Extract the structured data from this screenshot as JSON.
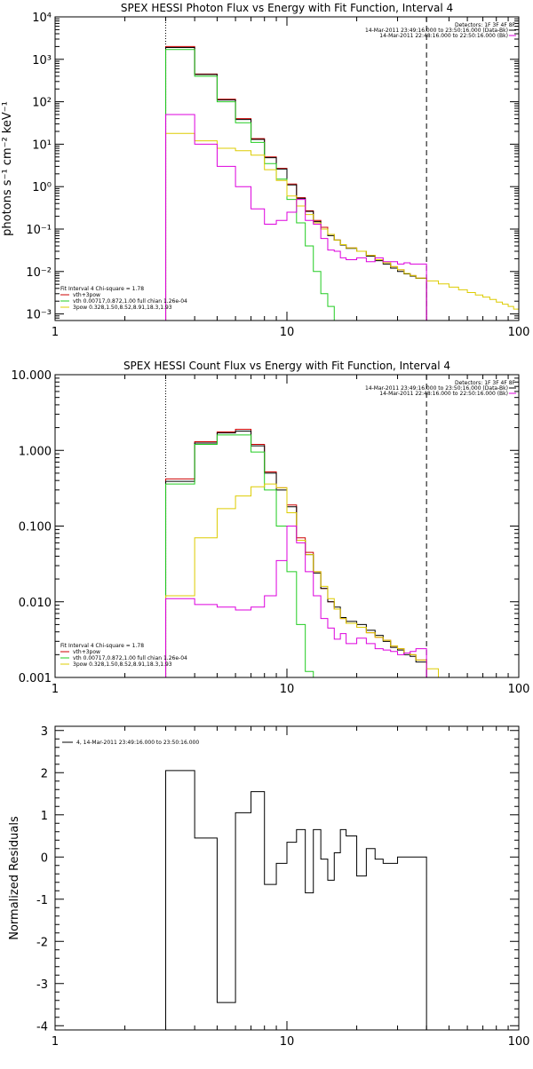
{
  "colors": {
    "sum": "#000000",
    "vth_spow": "#cc0000",
    "vth": "#22cc22",
    "spow": "#ddcc00",
    "bk": "#dd00dd"
  },
  "chart_data": [
    {
      "type": "line",
      "title": "SPEX HESSI Photon Flux vs Energy with Fit Function, Interval 4",
      "ylabel": "photons s⁻¹ cm⁻² keV⁻¹",
      "xlabel": "",
      "xscale": "log",
      "yscale": "log",
      "xlim": [
        1,
        100
      ],
      "ylim": [
        0.0007,
        10000
      ],
      "x_tick_labels": [
        "1",
        "10",
        "100"
      ],
      "y_tick_labels": [
        "10⁻³",
        "10⁻²",
        "10⁻¹",
        "10⁰",
        "10¹",
        "10²",
        "10³",
        "10⁴"
      ],
      "vlines": [
        {
          "x": 3,
          "style": "dotted"
        },
        {
          "x": 40,
          "style": "dashed"
        }
      ],
      "legend_top": [
        "Detectors: 1F 3F 4F 8F",
        "14-Mar-2011 23:49:16.000 to 23:50:16.000 (Data-Bk)",
        "14-Mar-2011 22:48:16.000 to 22:50:16.000 (Bk)"
      ],
      "legend_top_colors": [
        "",
        "#000000",
        "#dd00dd"
      ],
      "legend_bottom": [
        "Fit Interval 4   Chi-square = 1.78",
        "vth+3pow",
        "vth 0.00717,0.872,1.00  full chian 1.26e-04",
        "3pow 0.328,1.50,8.52,8.91,18.3,1.93"
      ],
      "legend_bottom_colors": [
        "",
        "#cc0000",
        "#22cc22",
        "#ddcc00"
      ],
      "edges": [
        3,
        4,
        5,
        6,
        7,
        8,
        9,
        10,
        11,
        12,
        13,
        14,
        15,
        16,
        17,
        18,
        20,
        22,
        24,
        26,
        28,
        30,
        32,
        34,
        36,
        40
      ],
      "extended_edges": [
        40,
        45,
        50,
        55,
        60,
        65,
        70,
        75,
        80,
        85,
        90,
        95,
        100
      ],
      "series": [
        {
          "name": "vth+3pow",
          "color": "#cc0000",
          "values": [
            2000,
            450,
            115,
            40,
            13.5,
            5,
            2.7,
            1.15,
            0.55,
            0.27,
            0.16,
            0.11,
            0.075,
            0.055,
            0.043,
            0.036,
            0.03,
            0.024,
            0.019,
            0.016,
            0.013,
            0.011,
            0.009,
            0.008,
            0.007
          ]
        },
        {
          "name": "Data-Bk",
          "color": "#000000",
          "values": [
            1900,
            440,
            110,
            38,
            13,
            4.8,
            2.6,
            1.1,
            0.53,
            0.26,
            0.15,
            0.1,
            0.07,
            0.055,
            0.042,
            0.035,
            0.03,
            0.023,
            0.018,
            0.015,
            0.012,
            0.01,
            0.0088,
            0.0078,
            0.0069
          ]
        },
        {
          "name": "vth",
          "color": "#22cc22",
          "values": [
            1700,
            400,
            100,
            32,
            11,
            3.5,
            1.5,
            0.5,
            0.14,
            0.04,
            0.01,
            0.003,
            0.0015,
            0.0007
          ]
        },
        {
          "name": "3pow",
          "color": "#ddcc00",
          "values": [
            18,
            12,
            8,
            7,
            5.5,
            2.5,
            1.4,
            0.6,
            0.35,
            0.22,
            0.14,
            0.1,
            0.075,
            0.055,
            0.043,
            0.036,
            0.03,
            0.024,
            0.019,
            0.016,
            0.013,
            0.011,
            0.009,
            0.008,
            0.007
          ],
          "extended_values": [
            0.006,
            0.0051,
            0.0043,
            0.0037,
            0.0032,
            0.0028,
            0.0025,
            0.0022,
            0.0019,
            0.0017,
            0.0015,
            0.0013
          ]
        },
        {
          "name": "Bk",
          "color": "#dd00dd",
          "values": [
            50,
            10,
            3,
            1,
            0.3,
            0.13,
            0.16,
            0.25,
            0.5,
            0.16,
            0.13,
            0.06,
            0.032,
            0.03,
            0.021,
            0.019,
            0.021,
            0.017,
            0.021,
            0.017,
            0.017,
            0.015,
            0.016,
            0.015,
            0.015
          ]
        }
      ]
    },
    {
      "type": "line",
      "title": "SPEX HESSI Count Flux vs Energy with Fit Function, Interval 4",
      "ylabel": "",
      "xlabel": "",
      "xscale": "log",
      "yscale": "log",
      "xlim": [
        1,
        100
      ],
      "ylim": [
        0.001,
        10
      ],
      "x_tick_labels": [
        "1",
        "10",
        "100"
      ],
      "y_tick_labels": [
        "0.001",
        "0.010",
        "0.100",
        "1.000",
        "10.000"
      ],
      "vlines": [
        {
          "x": 3,
          "style": "dotted"
        },
        {
          "x": 40,
          "style": "dashed"
        }
      ],
      "legend_top": [
        "Detectors: 1F 3F 4F 8F",
        "14-Mar-2011 23:49:16.000 to 23:50:16.000 (Data-Bk)",
        "14-Mar-2011 22:48:16.000 to 22:50:16.000 (Bk)"
      ],
      "legend_top_colors": [
        "",
        "#000000",
        "#dd00dd"
      ],
      "legend_bottom": [
        "Fit Interval 4   Chi-square = 1.78",
        "vth+3pow",
        "vth 0.00717,0.872,1.00  full chian 1.26e-04",
        "3pow 0.328,1.50,8.52,8.91,18.3,1.93"
      ],
      "legend_bottom_colors": [
        "",
        "#cc0000",
        "#22cc22",
        "#ddcc00"
      ],
      "edges": [
        3,
        4,
        5,
        6,
        7,
        8,
        9,
        10,
        11,
        12,
        13,
        14,
        15,
        16,
        17,
        18,
        20,
        22,
        24,
        26,
        28,
        30,
        32,
        34,
        36,
        40
      ],
      "extended_edges": [
        40,
        45,
        50
      ],
      "series": [
        {
          "name": "vth+3pow",
          "color": "#cc0000",
          "values": [
            0.42,
            1.3,
            1.75,
            1.9,
            1.2,
            0.52,
            0.32,
            0.19,
            0.07,
            0.045,
            0.025,
            0.015,
            0.01,
            0.008,
            0.006,
            0.0052,
            0.0046,
            0.0039,
            0.0034,
            0.0031,
            0.0026,
            0.0024,
            0.0021,
            0.002,
            0.0017
          ]
        },
        {
          "name": "Data-Bk",
          "color": "#000000",
          "values": [
            0.39,
            1.25,
            1.7,
            1.8,
            1.15,
            0.5,
            0.3,
            0.18,
            0.065,
            0.042,
            0.024,
            0.015,
            0.01,
            0.0085,
            0.0062,
            0.0055,
            0.005,
            0.0042,
            0.0036,
            0.003,
            0.0025,
            0.0023,
            0.002,
            0.0019,
            0.0016
          ]
        },
        {
          "name": "vth",
          "color": "#22cc22",
          "values": [
            0.36,
            1.2,
            1.6,
            1.6,
            0.95,
            0.3,
            0.1,
            0.025,
            0.005,
            0.0012,
            0.0008
          ]
        },
        {
          "name": "3pow",
          "color": "#ddcc00",
          "values": [
            0.012,
            0.07,
            0.17,
            0.25,
            0.33,
            0.36,
            0.32,
            0.15,
            0.065,
            0.042,
            0.025,
            0.016,
            0.011,
            0.008,
            0.006,
            0.0052,
            0.0046,
            0.0039,
            0.0034,
            0.0031,
            0.0026,
            0.0024,
            0.0021,
            0.002,
            0.0017
          ],
          "extended_values": [
            0.0013,
            0.001
          ]
        },
        {
          "name": "Bk",
          "color": "#dd00dd",
          "values": [
            0.011,
            0.0092,
            0.0085,
            0.0078,
            0.0085,
            0.012,
            0.035,
            0.1,
            0.06,
            0.025,
            0.012,
            0.006,
            0.0045,
            0.0032,
            0.0038,
            0.0028,
            0.0033,
            0.0028,
            0.0024,
            0.0023,
            0.0022,
            0.002,
            0.0021,
            0.0022,
            0.0024
          ]
        }
      ]
    },
    {
      "type": "line",
      "title": "",
      "ylabel": "Normalized Residuals",
      "xlabel": "",
      "xscale": "log",
      "yscale": "linear",
      "xlim": [
        1,
        100
      ],
      "ylim": [
        -4.1,
        3.1
      ],
      "x_tick_labels": [
        "1",
        "10",
        "100"
      ],
      "y_tick_labels": [
        "-4",
        "-3",
        "-2",
        "-1",
        "0",
        "1",
        "2",
        "3"
      ],
      "legend_top": [
        "4, 14-Mar-2011 23:49:16.000 to 23:50:16.000"
      ],
      "legend_top_colors": [
        "#000000"
      ],
      "edges": [
        3,
        4,
        5,
        6,
        7,
        8,
        9,
        10,
        11,
        12,
        13,
        14,
        15,
        16,
        17,
        18,
        20,
        22,
        24,
        26,
        28,
        30,
        32,
        34,
        36,
        40
      ],
      "series": [
        {
          "name": "4, 14-Mar-2011 23:49:16.000 to 23:50:16.000",
          "color": "#000000",
          "values": [
            2.05,
            0.45,
            -3.45,
            1.05,
            1.55,
            -0.65,
            -0.15,
            0.35,
            0.65,
            -0.85,
            0.65,
            -0.05,
            -0.55,
            0.1,
            0.65,
            0.5,
            -0.45,
            0.2,
            -0.05,
            -0.15,
            -0.15,
            0.0,
            0.0,
            0.0,
            0.0
          ]
        }
      ]
    }
  ]
}
